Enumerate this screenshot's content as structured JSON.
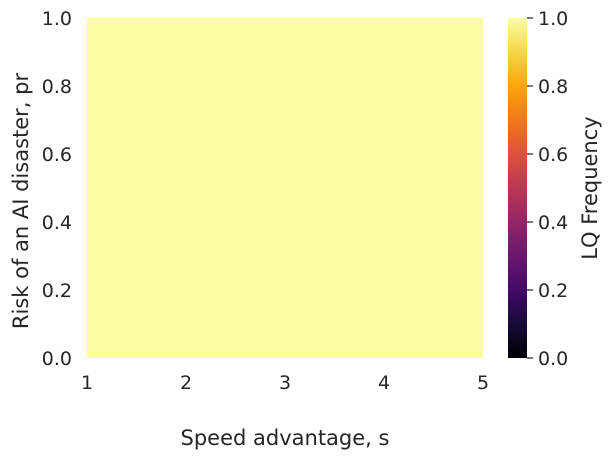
{
  "chart_data": {
    "type": "heatmap",
    "xlabel": "Speed advantage, s",
    "ylabel": "Risk of an AI disaster, pr",
    "xlim": [
      1,
      5
    ],
    "ylim": [
      0,
      1
    ],
    "x_ticks": [
      "1",
      "2",
      "3",
      "4",
      "5"
    ],
    "y_ticks": [
      "0.0",
      "0.2",
      "0.4",
      "0.6",
      "0.8",
      "1.0"
    ],
    "values": [
      [
        1.0
      ]
    ],
    "grid": false,
    "colorbar": {
      "label": "LQ Frequency",
      "range": [
        0,
        1
      ],
      "ticks": [
        "0.0",
        "0.2",
        "0.4",
        "0.6",
        "0.8",
        "1.0"
      ],
      "colormap": "inferno"
    },
    "cell_color": "#FAFDA0"
  }
}
